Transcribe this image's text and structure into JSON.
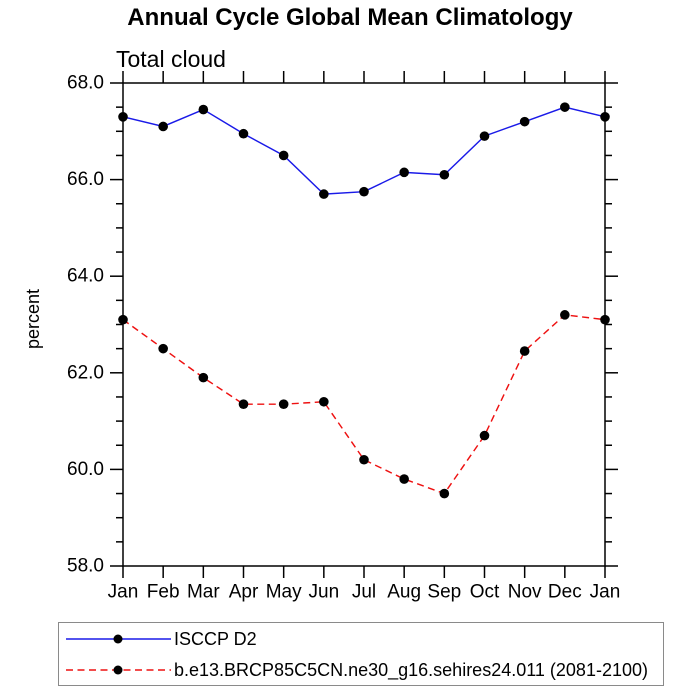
{
  "chart_data": {
    "type": "line",
    "title": "Annual Cycle Global Mean Climatology",
    "subtitle": "Total cloud",
    "ylabel": "percent",
    "xlabel": "",
    "categories": [
      "Jan",
      "Feb",
      "Mar",
      "Apr",
      "May",
      "Jun",
      "Jul",
      "Aug",
      "Sep",
      "Oct",
      "Nov",
      "Dec",
      "Jan"
    ],
    "ylim": [
      58.0,
      68.0
    ],
    "yticks": [
      58.0,
      60.0,
      62.0,
      64.0,
      66.0,
      68.0
    ],
    "ytick_labels": [
      "58.0",
      "60.0",
      "62.0",
      "64.0",
      "66.0",
      "68.0"
    ],
    "yminor_interval": 0.5,
    "grid": false,
    "legend_position": "bottom-left",
    "marker": "filled-circle",
    "marker_color": "#000000",
    "axis_color": "#000000",
    "series": [
      {
        "name": "ISCCP D2",
        "color": "#1a1ae8",
        "line_style": "solid",
        "values": [
          67.3,
          67.1,
          67.45,
          66.95,
          66.5,
          65.7,
          65.75,
          66.15,
          66.1,
          66.9,
          67.2,
          67.5,
          67.3
        ]
      },
      {
        "name": "b.e13.BRCP85C5CN.ne30_g16.sehires24.011 (2081-2100)",
        "color": "#ee1111",
        "line_style": "dashed",
        "values": [
          63.1,
          62.5,
          61.9,
          61.35,
          61.35,
          61.4,
          60.2,
          59.8,
          59.5,
          60.7,
          62.45,
          63.2,
          63.1
        ]
      }
    ]
  }
}
